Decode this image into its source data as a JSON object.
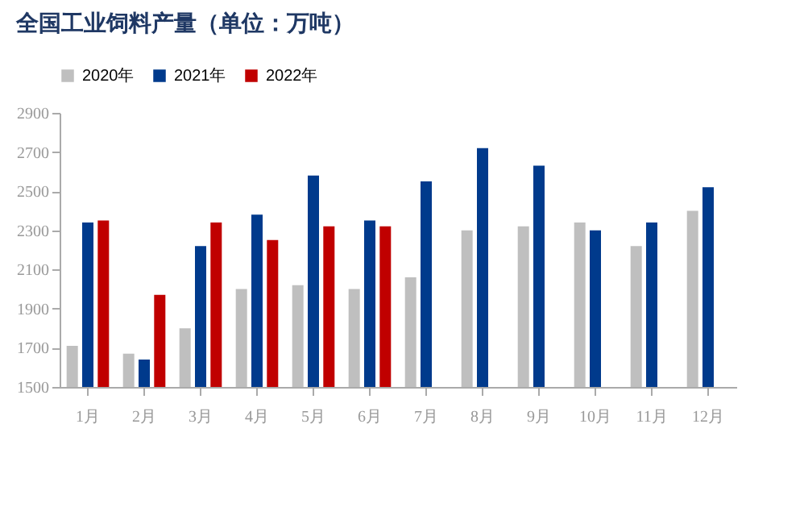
{
  "chart_data": {
    "type": "bar",
    "title": "全国工业饲料产量（单位：万吨）",
    "categories": [
      "1月",
      "2月",
      "3月",
      "4月",
      "5月",
      "6月",
      "7月",
      "8月",
      "9月",
      "10月",
      "11月",
      "12月"
    ],
    "series": [
      {
        "name": "2020年",
        "color": "#bfbfbf",
        "values": [
          1710,
          1670,
          1800,
          2000,
          2020,
          2000,
          2060,
          2300,
          2320,
          2340,
          2220,
          2400
        ]
      },
      {
        "name": "2021年",
        "color": "#003a8c",
        "values": [
          2340,
          1640,
          2220,
          2380,
          2580,
          2350,
          2550,
          2720,
          2630,
          2300,
          2340,
          2520
        ]
      },
      {
        "name": "2022年",
        "color": "#c00000",
        "values": [
          2350,
          1970,
          2340,
          2250,
          2320,
          2320,
          null,
          null,
          null,
          null,
          null,
          null
        ]
      }
    ],
    "ylim": [
      1500,
      2900
    ],
    "yticks": [
      1500,
      1700,
      1900,
      2100,
      2300,
      2500,
      2700,
      2900
    ],
    "grid": false,
    "legend": "top"
  }
}
